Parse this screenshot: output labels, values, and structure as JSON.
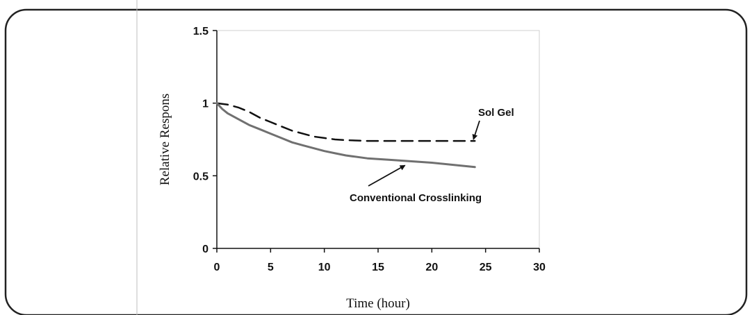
{
  "chart_data": {
    "type": "line",
    "title": "",
    "xlabel": "Time (hour)",
    "ylabel": "Relative Respons",
    "xlim": [
      0,
      30
    ],
    "ylim": [
      0,
      1.5
    ],
    "x_ticks": [
      "0",
      "5",
      "10",
      "15",
      "20",
      "25",
      "30"
    ],
    "y_ticks": [
      "0",
      "0.5",
      "1",
      "1.5"
    ],
    "grid": false,
    "legend": "none",
    "series": [
      {
        "name": "Sol Gel",
        "style": "dashed",
        "color": "#111111",
        "x": [
          0,
          1,
          2,
          3,
          4,
          5,
          6,
          7,
          8,
          9,
          10,
          11,
          12,
          14,
          16,
          18,
          20,
          22,
          24
        ],
        "y": [
          1.0,
          0.99,
          0.97,
          0.94,
          0.9,
          0.87,
          0.84,
          0.81,
          0.79,
          0.77,
          0.76,
          0.75,
          0.745,
          0.74,
          0.74,
          0.74,
          0.74,
          0.74,
          0.74
        ]
      },
      {
        "name": "Conventional Crosslinking",
        "style": "solid",
        "color": "#707070",
        "x": [
          0,
          0.5,
          1,
          2,
          3,
          4,
          5,
          6,
          7,
          8,
          9,
          10,
          11,
          12,
          14,
          16,
          18,
          20,
          22,
          24
        ],
        "y": [
          1.0,
          0.96,
          0.93,
          0.89,
          0.85,
          0.82,
          0.79,
          0.76,
          0.73,
          0.71,
          0.69,
          0.67,
          0.655,
          0.64,
          0.62,
          0.61,
          0.6,
          0.59,
          0.575,
          0.56
        ]
      }
    ],
    "annotations": [
      {
        "text": "Sol Gel",
        "series": "Sol Gel",
        "points_to_x": 24,
        "points_to_y": 0.76
      },
      {
        "text": "Conventional Crosslinking",
        "series": "Conventional Crosslinking",
        "points_to_x": 17.5,
        "points_to_y": 0.6
      }
    ]
  }
}
